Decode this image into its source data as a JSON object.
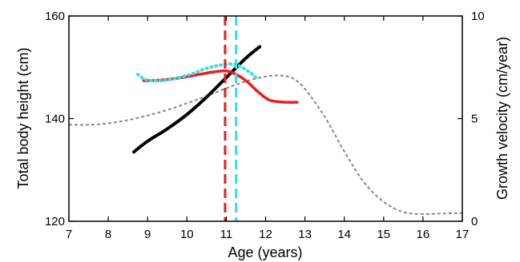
{
  "chart_data": {
    "type": "line",
    "title": "",
    "xlabel": "Age (years)",
    "ylabel": "Total body height (cm)",
    "y2label": "Growth velocity (cm/year)",
    "xlim": [
      7,
      17
    ],
    "ylim": [
      120,
      160
    ],
    "y2lim": [
      0,
      10
    ],
    "xticks": [
      7,
      8,
      9,
      10,
      11,
      12,
      13,
      14,
      15,
      16,
      17
    ],
    "yticks": [
      120,
      140,
      160
    ],
    "y2ticks": [
      0,
      5,
      10
    ],
    "grid": false,
    "legend": "none",
    "series": [
      {
        "axis": "left",
        "color": "#000000",
        "style": "solid",
        "x": [
          8.65,
          9.0,
          9.5,
          10.0,
          10.5,
          11.0,
          11.5,
          11.85
        ],
        "y": [
          133.5,
          135.6,
          138.0,
          140.8,
          144.2,
          148.0,
          151.8,
          154.0
        ]
      },
      {
        "axis": "right",
        "color": "#ee1c1c",
        "style": "solid",
        "x": [
          8.9,
          9.3,
          9.8,
          10.3,
          10.7,
          11.0,
          11.2,
          11.5,
          11.8,
          12.1,
          12.5,
          12.8
        ],
        "y": [
          6.85,
          6.87,
          6.98,
          7.15,
          7.28,
          7.32,
          7.2,
          6.85,
          6.32,
          5.9,
          5.8,
          5.8
        ]
      },
      {
        "axis": "right",
        "color": "#3cdcdc",
        "style": "dotted",
        "x": [
          8.75,
          8.9,
          9.1,
          9.5,
          10.0,
          10.5,
          11.0,
          11.3,
          11.6,
          11.75
        ],
        "y": [
          7.15,
          6.95,
          6.85,
          6.88,
          7.1,
          7.45,
          7.65,
          7.6,
          7.25,
          7.0
        ]
      },
      {
        "axis": "right",
        "color": "#888888",
        "style": "dashed",
        "x": [
          7.0,
          7.5,
          8.0,
          8.5,
          9.0,
          9.5,
          10.0,
          10.5,
          11.0,
          11.5,
          12.0,
          12.4,
          12.7,
          13.0,
          13.5,
          14.0,
          14.5,
          15.0,
          15.5,
          16.0,
          16.5,
          17.0
        ],
        "y": [
          4.7,
          4.7,
          4.77,
          4.93,
          5.15,
          5.42,
          5.75,
          6.1,
          6.48,
          6.82,
          7.05,
          7.1,
          6.95,
          6.45,
          5.1,
          3.4,
          1.9,
          0.95,
          0.45,
          0.35,
          0.38,
          0.4
        ]
      }
    ],
    "vlines": [
      {
        "x": 10.97,
        "color": "#ee1c1c",
        "style": "dashed"
      },
      {
        "x": 11.25,
        "color": "#3cdcdc",
        "style": "dashed"
      }
    ]
  }
}
